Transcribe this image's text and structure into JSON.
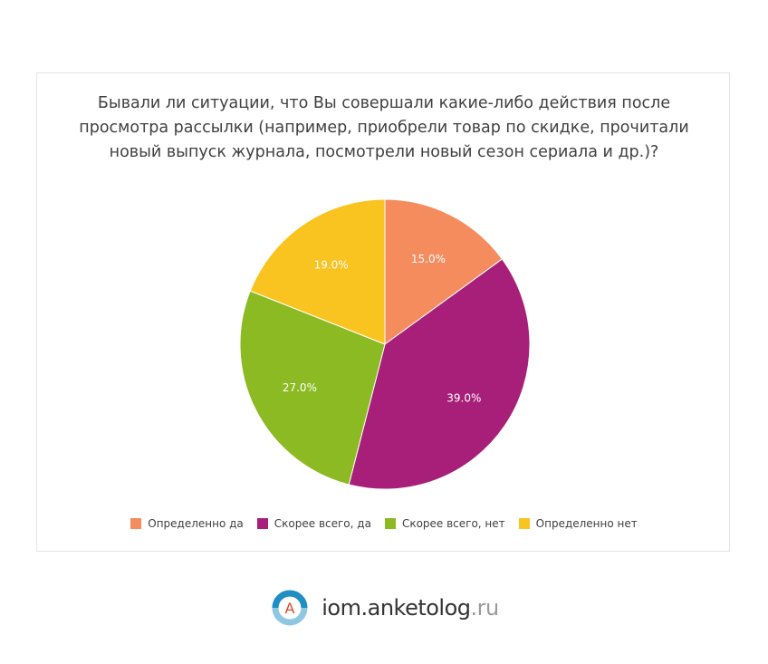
{
  "chart_data": {
    "type": "pie",
    "title": "Бывали ли ситуации, что Вы совершали какие-либо действия после просмотра рассылки (например, приобрели товар по скидке, прочитали новый выпуск журнала, посмотрели новый сезон сериала и др.)?",
    "slices": [
      {
        "label": "Определенно да",
        "value": 15.0,
        "display": "15.0%",
        "color": "#f58c5e"
      },
      {
        "label": "Скорее всего, да",
        "value": 39.0,
        "display": "39.0%",
        "color": "#a81f79"
      },
      {
        "label": "Скорее всего, нет",
        "value": 27.0,
        "display": "27.0%",
        "color": "#8bba22"
      },
      {
        "label": "Определенно нет",
        "value": 19.0,
        "display": "19.0%",
        "color": "#f9c320"
      }
    ],
    "legend_position": "bottom"
  },
  "footer": {
    "brand_main": "iom.anketolog",
    "brand_tld": ".ru",
    "logo_letter": "A",
    "logo_colors": {
      "ring": "#1f8ec2",
      "ring_light": "#8fc7e3",
      "letter": "#e0452c"
    }
  }
}
